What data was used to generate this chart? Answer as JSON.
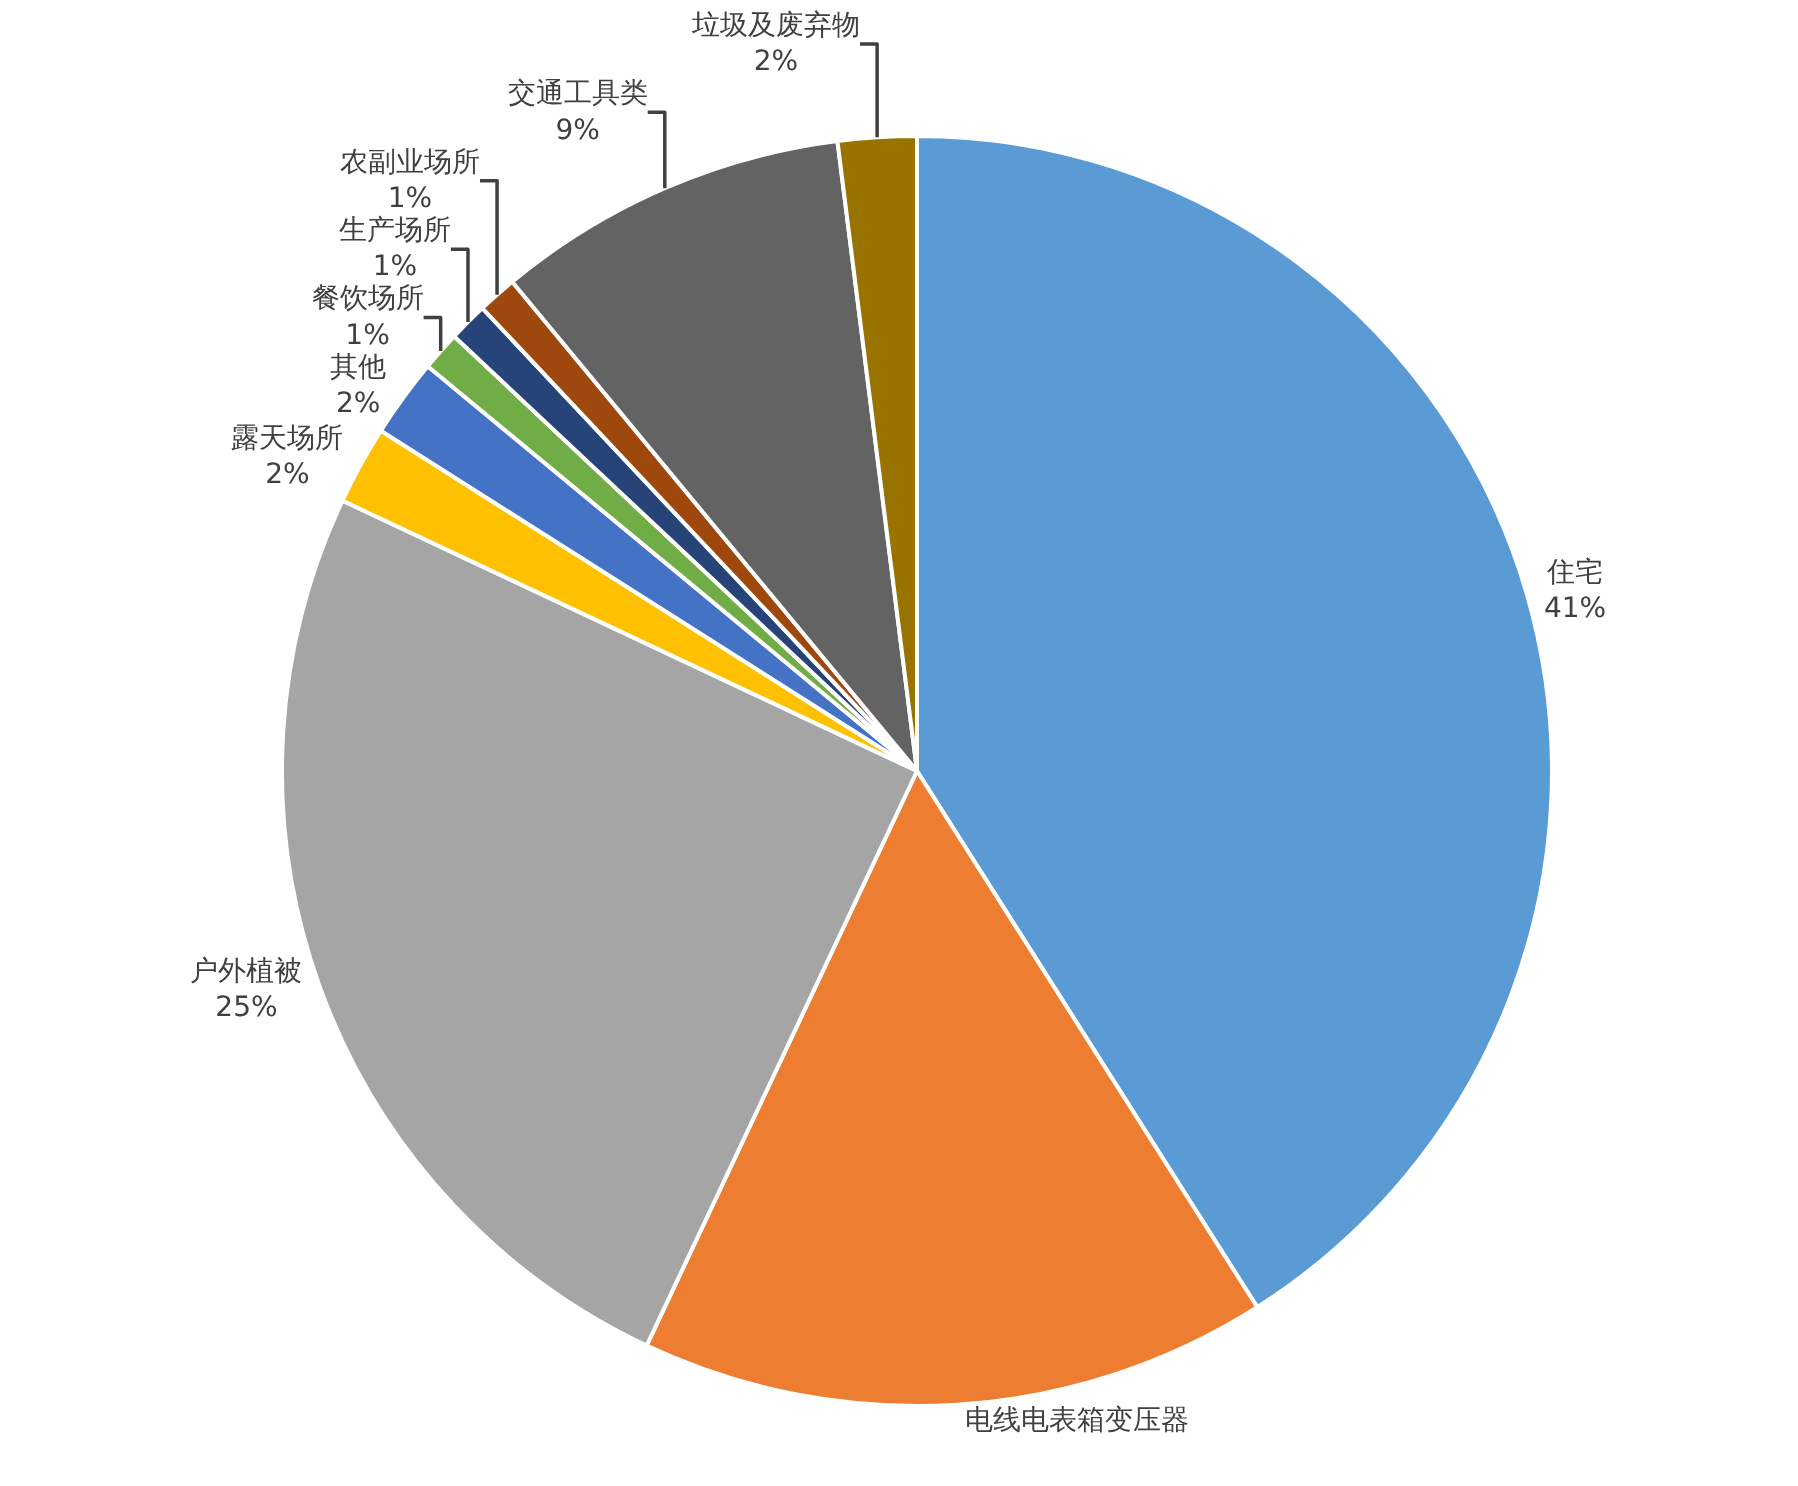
{
  "chart_data": {
    "type": "pie",
    "categories": [
      "住宅",
      "电线电表箱变压器",
      "户外植被",
      "露天场所",
      "其他",
      "餐饮场所",
      "生产场所",
      "农副业场所",
      "交通工具类",
      "垃圾及废弃物"
    ],
    "values": [
      41,
      16,
      25,
      2,
      2,
      1,
      1,
      1,
      9,
      2
    ],
    "value_labels": [
      "41%",
      null,
      "25%",
      "2%",
      "2%",
      "1%",
      "1%",
      "1%",
      "9%",
      "2%"
    ],
    "colors": [
      "#5b9bd5",
      "#ed7d31",
      "#a5a5a5",
      "#ffc000",
      "#4472c4",
      "#70ad47",
      "#264478",
      "#9e480e",
      "#636363",
      "#997300"
    ],
    "legend": false
  }
}
